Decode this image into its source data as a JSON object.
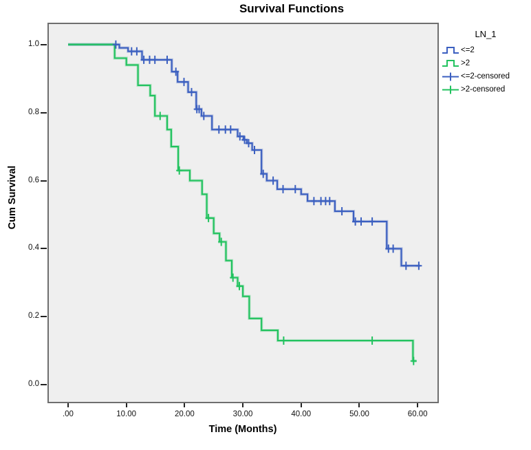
{
  "chart_data": {
    "type": "line",
    "subtype": "kaplan-meier-step-survival",
    "title": "Survival Functions",
    "xlabel": "Time (Months)",
    "ylabel": "Cum Survival",
    "xlim": [
      -3.3,
      63.4
    ],
    "ylim": [
      -0.05,
      1.06
    ],
    "grid": false,
    "plot_background": "#efefef",
    "frame_color": "#6e6e6e",
    "x_ticks": [
      {
        "value": 0,
        "label": ".00"
      },
      {
        "value": 10,
        "label": "10.00"
      },
      {
        "value": 20,
        "label": "20.00"
      },
      {
        "value": 30,
        "label": "30.00"
      },
      {
        "value": 40,
        "label": "40.00"
      },
      {
        "value": 50,
        "label": "50.00"
      },
      {
        "value": 60,
        "label": "60.00"
      }
    ],
    "y_ticks": [
      {
        "value": 0.0,
        "label": "0.0"
      },
      {
        "value": 0.2,
        "label": "0.2"
      },
      {
        "value": 0.4,
        "label": "0.4"
      },
      {
        "value": 0.6,
        "label": "0.6"
      },
      {
        "value": 0.8,
        "label": "0.8"
      },
      {
        "value": 1.0,
        "label": "1.0"
      }
    ],
    "legend": {
      "title": "LN_1",
      "position": "right",
      "entries": [
        {
          "label": "<=2",
          "color": "#3b5fc0",
          "marker": "step"
        },
        {
          "label": ">2",
          "color": "#21c25e",
          "marker": "step"
        },
        {
          "label": "<=2-censored",
          "color": "#3b5fc0",
          "marker": "plus"
        },
        {
          "label": ">2-censored",
          "color": "#21c25e",
          "marker": "plus"
        }
      ]
    },
    "series": [
      {
        "id": "le2",
        "name": "<=2",
        "color": "#3b5fc0",
        "end_time": 60.4,
        "steps": [
          [
            0,
            1.0
          ],
          [
            8.8,
            0.99
          ],
          [
            10.3,
            0.98
          ],
          [
            12.7,
            0.955
          ],
          [
            17.8,
            0.92
          ],
          [
            18.8,
            0.89
          ],
          [
            20.6,
            0.86
          ],
          [
            22.0,
            0.81
          ],
          [
            22.9,
            0.79
          ],
          [
            24.7,
            0.75
          ],
          [
            29.1,
            0.73
          ],
          [
            30.1,
            0.72
          ],
          [
            30.7,
            0.71
          ],
          [
            31.6,
            0.69
          ],
          [
            33.2,
            0.62
          ],
          [
            34.1,
            0.6
          ],
          [
            35.9,
            0.575
          ],
          [
            40.0,
            0.56
          ],
          [
            41.1,
            0.54
          ],
          [
            45.8,
            0.51
          ],
          [
            49.0,
            0.48
          ],
          [
            54.7,
            0.4
          ],
          [
            57.2,
            0.35
          ]
        ],
        "censored": [
          [
            8.2,
            1.0
          ],
          [
            10.9,
            0.98
          ],
          [
            11.8,
            0.98
          ],
          [
            13.0,
            0.955
          ],
          [
            14.0,
            0.955
          ],
          [
            14.9,
            0.955
          ],
          [
            17.0,
            0.955
          ],
          [
            18.5,
            0.92
          ],
          [
            19.9,
            0.89
          ],
          [
            21.2,
            0.86
          ],
          [
            22.1,
            0.81
          ],
          [
            22.5,
            0.81
          ],
          [
            23.3,
            0.79
          ],
          [
            25.9,
            0.75
          ],
          [
            27.0,
            0.75
          ],
          [
            27.9,
            0.75
          ],
          [
            29.5,
            0.73
          ],
          [
            30.3,
            0.72
          ],
          [
            31.0,
            0.71
          ],
          [
            32.0,
            0.69
          ],
          [
            33.5,
            0.62
          ],
          [
            35.2,
            0.6
          ],
          [
            36.9,
            0.575
          ],
          [
            39.0,
            0.575
          ],
          [
            42.2,
            0.54
          ],
          [
            43.4,
            0.54
          ],
          [
            44.2,
            0.54
          ],
          [
            44.9,
            0.54
          ],
          [
            47.0,
            0.51
          ],
          [
            49.3,
            0.48
          ],
          [
            50.3,
            0.48
          ],
          [
            52.2,
            0.48
          ],
          [
            55.0,
            0.4
          ],
          [
            55.8,
            0.4
          ],
          [
            58.0,
            0.35
          ],
          [
            60.2,
            0.35
          ]
        ]
      },
      {
        "id": "gt2",
        "name": ">2",
        "color": "#21c25e",
        "end_time": 59.8,
        "steps": [
          [
            0,
            1.0
          ],
          [
            8.0,
            0.96
          ],
          [
            10.0,
            0.94
          ],
          [
            12.0,
            0.88
          ],
          [
            14.1,
            0.85
          ],
          [
            14.9,
            0.79
          ],
          [
            17.0,
            0.75
          ],
          [
            17.7,
            0.7
          ],
          [
            18.9,
            0.63
          ],
          [
            20.9,
            0.6
          ],
          [
            23.0,
            0.56
          ],
          [
            23.8,
            0.49
          ],
          [
            25.0,
            0.445
          ],
          [
            26.0,
            0.42
          ],
          [
            27.1,
            0.365
          ],
          [
            28.1,
            0.315
          ],
          [
            29.1,
            0.29
          ],
          [
            30.0,
            0.26
          ],
          [
            31.1,
            0.195
          ],
          [
            33.2,
            0.16
          ],
          [
            36.0,
            0.13
          ],
          [
            59.2,
            0.07
          ]
        ],
        "censored": [
          [
            15.8,
            0.79
          ],
          [
            19.1,
            0.63
          ],
          [
            24.1,
            0.49
          ],
          [
            26.3,
            0.42
          ],
          [
            28.3,
            0.315
          ],
          [
            29.4,
            0.29
          ],
          [
            37.0,
            0.13
          ],
          [
            52.2,
            0.13
          ],
          [
            59.3,
            0.07
          ]
        ]
      }
    ]
  }
}
